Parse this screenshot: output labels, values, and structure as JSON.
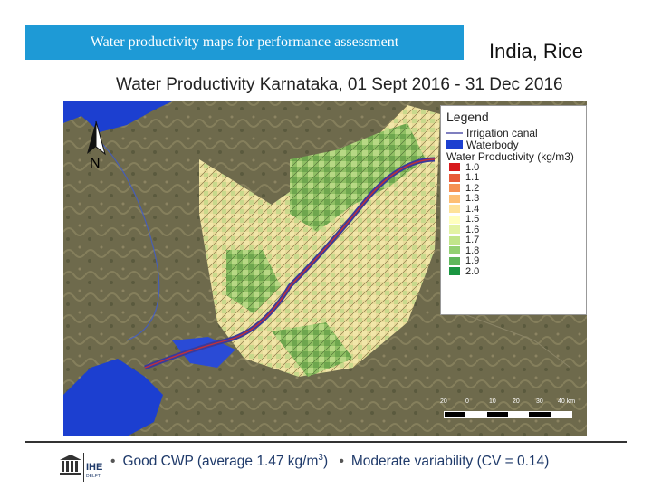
{
  "slide": {
    "banner_title": "Water productivity maps for performance assessment",
    "region": "India, Rice"
  },
  "map": {
    "heading": "Water Productivity Karnataka, 01 Sept 2016 - 31 Dec 2016",
    "north_label": "N",
    "legend": {
      "title": "Legend",
      "line_items": [
        {
          "label": "Irrigation canal",
          "color": "#7f7fbf"
        },
        {
          "label": "Waterbody",
          "color": "#1c3fd0"
        }
      ],
      "classes_title": "Water Productivity (kg/m3)",
      "classes": [
        {
          "label": "1.0",
          "color": "#d7191c"
        },
        {
          "label": "1.1",
          "color": "#e85b3a"
        },
        {
          "label": "1.2",
          "color": "#f59053"
        },
        {
          "label": "1.3",
          "color": "#fdbe74"
        },
        {
          "label": "1.4",
          "color": "#fee29a"
        },
        {
          "label": "1.5",
          "color": "#ffffbf"
        },
        {
          "label": "1.6",
          "color": "#e3f3a4"
        },
        {
          "label": "1.7",
          "color": "#c1e58a"
        },
        {
          "label": "1.8",
          "color": "#93d072"
        },
        {
          "label": "1.9",
          "color": "#5fb75b"
        },
        {
          "label": "2.0",
          "color": "#1a9641"
        }
      ]
    },
    "scale": {
      "ticks": [
        "20",
        "0",
        "10",
        "20",
        "30",
        "40 km"
      ]
    }
  },
  "footer": {
    "bullet1_pre": "Good CWP (average 1.47 kg/m",
    "bullet1_sup": "3",
    "bullet1_post": ")",
    "bullet2": "Moderate variability (CV = 0.14)",
    "bullet_char": "•",
    "logo_text": "IHE",
    "logo_sub": "DELFT"
  }
}
